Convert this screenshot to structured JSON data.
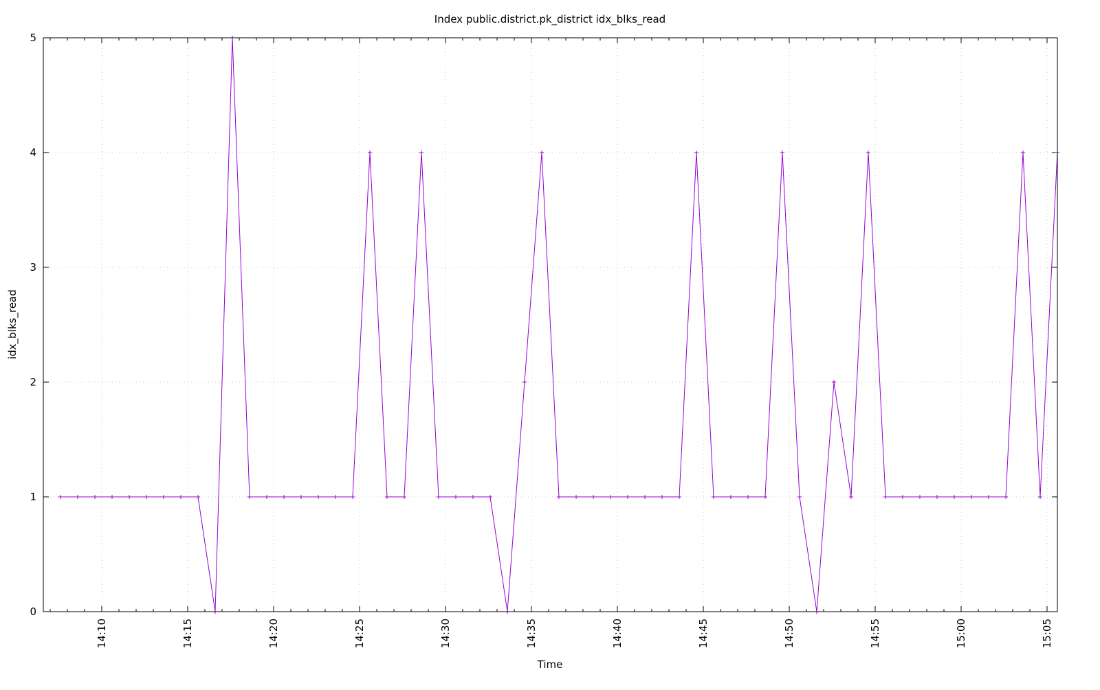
{
  "chart_data": {
    "type": "line",
    "title": "Index public.district.pk_district idx_blks_read",
    "xlabel": "Time",
    "ylabel": "idx_blks_read",
    "xlim": [
      "14:06:36",
      "15:05:36"
    ],
    "ylim": [
      0,
      5
    ],
    "grid": true,
    "marker": "plus",
    "line_color": "#9400d3",
    "x_ticks": [
      "14:10",
      "14:15",
      "14:20",
      "14:25",
      "14:30",
      "14:35",
      "14:40",
      "14:45",
      "14:50",
      "14:55",
      "15:00",
      "15:05"
    ],
    "y_ticks": [
      "0",
      "1",
      "2",
      "3",
      "4",
      "5"
    ],
    "x": [
      "14:07:36",
      "14:08:36",
      "14:09:36",
      "14:10:36",
      "14:11:36",
      "14:12:36",
      "14:13:36",
      "14:14:36",
      "14:15:36",
      "14:16:36",
      "14:17:36",
      "14:18:36",
      "14:19:36",
      "14:20:36",
      "14:21:36",
      "14:22:36",
      "14:23:36",
      "14:24:36",
      "14:25:36",
      "14:26:36",
      "14:27:36",
      "14:28:36",
      "14:29:36",
      "14:30:36",
      "14:31:36",
      "14:32:36",
      "14:33:36",
      "14:34:36",
      "14:35:36",
      "14:36:36",
      "14:37:36",
      "14:38:36",
      "14:39:36",
      "14:40:36",
      "14:41:36",
      "14:42:36",
      "14:43:36",
      "14:44:36",
      "14:45:36",
      "14:46:36",
      "14:47:36",
      "14:48:36",
      "14:49:36",
      "14:50:36",
      "14:51:36",
      "14:52:36",
      "14:53:36",
      "14:54:36",
      "14:55:36",
      "14:56:36",
      "14:57:36",
      "14:58:36",
      "14:59:36",
      "15:00:36",
      "15:01:36",
      "15:02:36",
      "15:03:36",
      "15:04:36",
      "15:05:36"
    ],
    "values": [
      1,
      1,
      1,
      1,
      1,
      1,
      1,
      1,
      1,
      0,
      5,
      1,
      1,
      1,
      1,
      1,
      1,
      1,
      4,
      1,
      1,
      4,
      1,
      1,
      1,
      1,
      0,
      2,
      4,
      1,
      1,
      1,
      1,
      1,
      1,
      1,
      1,
      4,
      1,
      1,
      1,
      1,
      4,
      1,
      0,
      2,
      1,
      4,
      1,
      1,
      1,
      1,
      1,
      1,
      1,
      1,
      4,
      1,
      4
    ]
  }
}
